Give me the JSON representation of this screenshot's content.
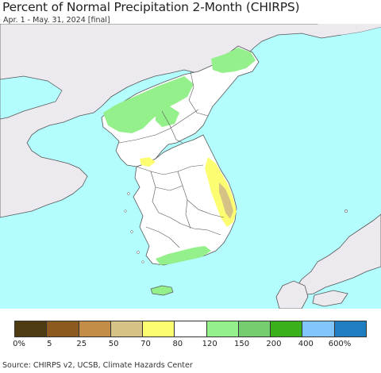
{
  "header": {
    "title": "Percent of Normal Precipitation 2-Month (CHIRPS)",
    "subtitle": "Apr. 1 - May. 31, 2024 [final]"
  },
  "colors": {
    "water": "#b3fdff",
    "land_outside": "#ece9ef",
    "normal": "#ffffff",
    "wet_light": "#93f08a",
    "dry_yellow": "#fdfd72",
    "dry_tan": "#d6c284",
    "border": "#555555"
  },
  "legend": {
    "bins": [
      {
        "color": "#4f3b12"
      },
      {
        "color": "#8c5a1e"
      },
      {
        "color": "#c48d47"
      },
      {
        "color": "#d6c284"
      },
      {
        "color": "#fdfd72"
      },
      {
        "color": "#ffffff"
      },
      {
        "color": "#93f08a"
      },
      {
        "color": "#75cd6f"
      },
      {
        "color": "#3ab11a"
      },
      {
        "color": "#80c5fc"
      },
      {
        "color": "#1f7dc0"
      }
    ],
    "labels": [
      "0%",
      "5",
      "25",
      "50",
      "70",
      "80",
      "120",
      "150",
      "200",
      "400",
      "600%"
    ]
  },
  "footer": {
    "source": "Source: CHIRPS v2, UCSB, Climate Hazards Center"
  }
}
